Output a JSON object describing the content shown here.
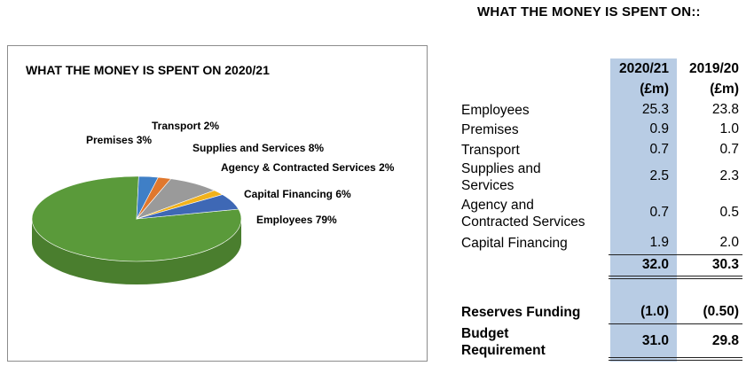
{
  "page_title": "WHAT THE MONEY IS SPENT ON::",
  "chart_data": {
    "type": "pie",
    "title": "WHAT THE MONEY IS SPENT ON 2020/21",
    "slices": [
      {
        "label": "Employees 79%",
        "value": 79,
        "color": "#5a9a3a",
        "side": "#4a7e2e"
      },
      {
        "label": "Premises 3%",
        "value": 3,
        "color": "#3f7fc6",
        "side": "#2f5f96"
      },
      {
        "label": "Transport 2%",
        "value": 2,
        "color": "#e0782e",
        "side": "#b05a20"
      },
      {
        "label": "Supplies and Services 8%",
        "value": 8,
        "color": "#9a9a9a",
        "side": "#767676"
      },
      {
        "label": "Agency & Contracted Services 2%",
        "value": 2,
        "color": "#f2b21b",
        "side": "#c28c12"
      },
      {
        "label": "Capital Financing 6%",
        "value": 6,
        "color": "#3e68b5",
        "side": "#2d4f8a"
      }
    ]
  },
  "table": {
    "headers": [
      {
        "line1": "2020/21",
        "line2": "(£m)"
      },
      {
        "line1": "2019/20",
        "line2": "(£m)"
      }
    ],
    "rows": [
      {
        "label": "Employees",
        "v2021": "25.3",
        "v1920": "23.8"
      },
      {
        "label": "Premises",
        "v2021": "0.9",
        "v1920": "1.0"
      },
      {
        "label": "Transport",
        "v2021": "0.7",
        "v1920": "0.7"
      },
      {
        "label": "Supplies and Services",
        "v2021": "2.5",
        "v1920": "2.3"
      },
      {
        "label": "Agency and Contracted Services",
        "v2021": "0.7",
        "v1920": "0.5"
      },
      {
        "label": "Capital Financing",
        "v2021": "1.9",
        "v1920": "2.0"
      }
    ],
    "total": {
      "v2021": "32.0",
      "v1920": "30.3"
    },
    "reserves": {
      "label": "Reserves Funding",
      "v2021": "(1.0)",
      "v1920": "(0.50)"
    },
    "budget": {
      "label": "Budget Requirement",
      "v2021": "31.0",
      "v1920": "29.8"
    }
  }
}
